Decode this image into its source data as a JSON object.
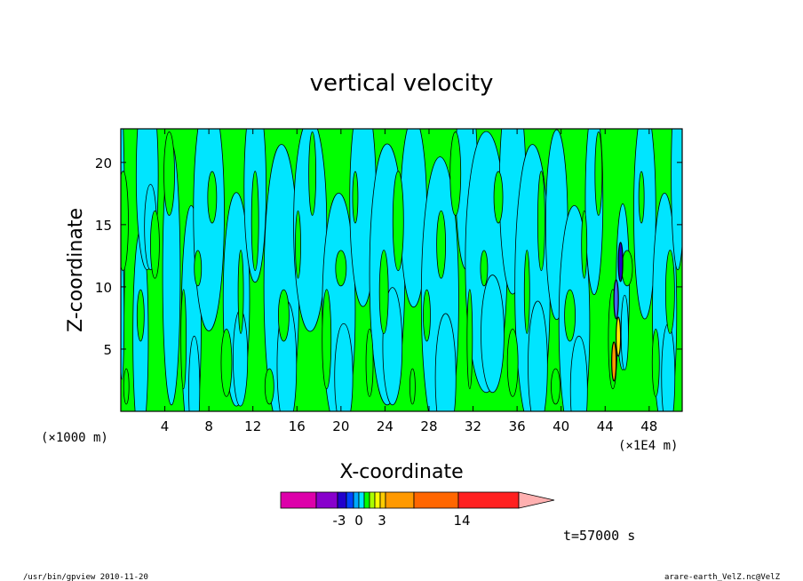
{
  "chart_data": {
    "type": "heatmap",
    "title": "vertical velocity",
    "xlabel": "X-coordinate",
    "ylabel": "Z-coordinate",
    "x_unit_left": "(×1000 m)",
    "x_unit_right": "(×1E4 m)",
    "x_ticks": [
      "4",
      "8",
      "12",
      "16",
      "20",
      "24",
      "28",
      "32",
      "36",
      "40",
      "44",
      "48"
    ],
    "x_tick_values": [
      4,
      8,
      12,
      16,
      20,
      24,
      28,
      32,
      36,
      40,
      44,
      48
    ],
    "y_ticks": [
      "5",
      "10",
      "15",
      "20"
    ],
    "y_tick_values": [
      5,
      10,
      15,
      20
    ],
    "xlim": [
      0,
      51
    ],
    "ylim": [
      0,
      22.7
    ],
    "grid": false,
    "colorbar": {
      "colors": [
        "#dd00aa",
        "#8800cc",
        "#2200cc",
        "#0044ff",
        "#00aaff",
        "#00e5ff",
        "#00ff00",
        "#aaff00",
        "#ffff00",
        "#ffcc00",
        "#ff9900",
        "#ff6600",
        "#ff2020",
        "#ff8080",
        "#ffb0b0"
      ],
      "tick_labels": [
        "-3",
        "0",
        "3",
        "14"
      ],
      "extend": "max"
    },
    "time_label": "t=57000 s"
  },
  "footer": {
    "left": "/usr/bin/gpview   2010-11-20",
    "right": "arare-earth_VelZ.nc@VelZ"
  }
}
